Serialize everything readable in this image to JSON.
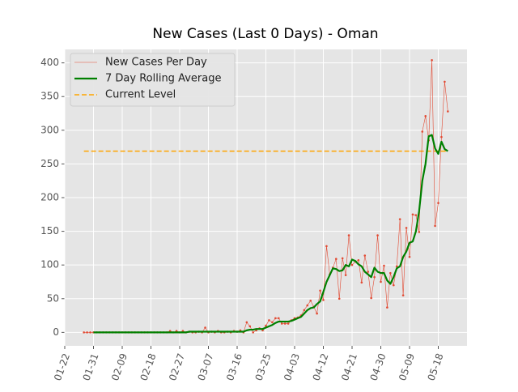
{
  "chart_data": {
    "type": "line",
    "title": "New Cases (Last 0 Days) - Oman",
    "x": [
      "01-28",
      "01-29",
      "01-30",
      "01-31",
      "02-01",
      "02-02",
      "02-03",
      "02-04",
      "02-05",
      "02-06",
      "02-07",
      "02-08",
      "02-09",
      "02-10",
      "02-11",
      "02-12",
      "02-13",
      "02-14",
      "02-15",
      "02-16",
      "02-17",
      "02-18",
      "02-19",
      "02-20",
      "02-21",
      "02-22",
      "02-23",
      "02-24",
      "02-25",
      "02-26",
      "02-27",
      "02-28",
      "02-29",
      "03-01",
      "03-02",
      "03-03",
      "03-04",
      "03-05",
      "03-06",
      "03-07",
      "03-08",
      "03-09",
      "03-10",
      "03-11",
      "03-12",
      "03-13",
      "03-14",
      "03-15",
      "03-16",
      "03-17",
      "03-18",
      "03-19",
      "03-20",
      "03-21",
      "03-22",
      "03-23",
      "03-24",
      "03-25",
      "03-26",
      "03-27",
      "03-28",
      "03-29",
      "03-30",
      "03-31",
      "04-01",
      "04-02",
      "04-03",
      "04-04",
      "04-05",
      "04-06",
      "04-07",
      "04-08",
      "04-09",
      "04-10",
      "04-11",
      "04-12",
      "04-13",
      "04-14",
      "04-15",
      "04-16",
      "04-17",
      "04-18",
      "04-19",
      "04-20",
      "04-21",
      "04-22",
      "04-23",
      "04-24",
      "04-25",
      "04-26",
      "04-27",
      "04-28",
      "04-29",
      "04-30",
      "05-01",
      "05-02",
      "05-03",
      "05-04",
      "05-05",
      "05-06",
      "05-07",
      "05-08",
      "05-09",
      "05-10",
      "05-11",
      "05-12",
      "05-13",
      "05-14",
      "05-15",
      "05-16",
      "05-17",
      "05-18",
      "05-19",
      "05-20",
      "05-21"
    ],
    "series": [
      {
        "name": "New Cases Per Day",
        "color": "#e24a33",
        "style": "thin-markers",
        "values": [
          0,
          0,
          0,
          0,
          0,
          0,
          0,
          0,
          0,
          0,
          0,
          0,
          0,
          0,
          0,
          0,
          0,
          0,
          0,
          0,
          0,
          0,
          0,
          0,
          0,
          0,
          0,
          2,
          0,
          2,
          0,
          2,
          0,
          1,
          0,
          0,
          1,
          0,
          7,
          0,
          1,
          0,
          2,
          0,
          0,
          1,
          0,
          2,
          1,
          3,
          0,
          15,
          9,
          0,
          3,
          6,
          3,
          10,
          18,
          15,
          21,
          21,
          13,
          13,
          13,
          18,
          21,
          22,
          25,
          33,
          40,
          47,
          38,
          28,
          62,
          48,
          128,
          86,
          96,
          109,
          50,
          110,
          85,
          144,
          100,
          105,
          107,
          74,
          114,
          90,
          51,
          82,
          144,
          75,
          99,
          37,
          88,
          70,
          98,
          168,
          55,
          155,
          112,
          175,
          174,
          149,
          298,
          321,
          285,
          404,
          158,
          192,
          290,
          372,
          328
        ]
      },
      {
        "name": "7 Day Rolling Average",
        "color": "green",
        "style": "thick",
        "values": [
          null,
          null,
          null,
          0,
          0,
          0,
          0,
          0,
          0,
          0,
          0,
          0,
          0,
          0,
          0,
          0,
          0,
          0,
          0,
          0,
          0,
          0,
          0,
          0,
          0,
          0,
          0,
          0,
          0,
          0,
          0,
          0,
          0,
          1,
          1,
          1,
          1,
          1,
          1,
          1,
          1,
          1,
          1,
          1,
          1,
          1,
          1,
          1,
          1,
          1,
          1,
          3,
          4,
          4,
          5,
          5,
          5,
          7,
          9,
          11,
          14,
          16,
          16,
          16,
          16,
          17,
          19,
          21,
          23,
          28,
          33,
          36,
          37,
          42,
          46,
          60,
          75,
          85,
          95,
          94,
          91,
          92,
          100,
          98,
          108,
          106,
          101,
          98,
          90,
          86,
          82,
          96,
          90,
          88,
          88,
          77,
          72,
          82,
          95,
          98,
          112,
          120,
          133,
          135,
          150,
          180,
          225,
          250,
          291,
          293,
          273,
          265,
          283,
          272,
          269
        ]
      }
    ],
    "current_level": {
      "name": "Current Level",
      "color": "orange",
      "value": 269
    },
    "xlim": [
      "01-22",
      "05-27"
    ],
    "xticks": [
      "01-22",
      "01-31",
      "02-09",
      "02-18",
      "02-27",
      "03-07",
      "03-16",
      "03-25",
      "04-03",
      "04-12",
      "04-21",
      "04-30",
      "05-09",
      "05-18"
    ],
    "ylim": [
      -20,
      420
    ],
    "yticks": [
      0,
      50,
      100,
      150,
      200,
      250,
      300,
      350,
      400
    ],
    "grid": true,
    "legend": "upper left"
  }
}
